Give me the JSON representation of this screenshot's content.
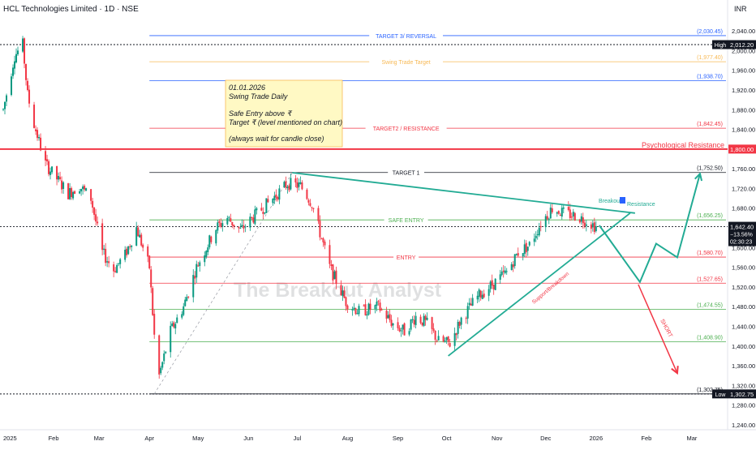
{
  "header": {
    "title": "HCL Technologies Limited · 1D · NSE",
    "currency": "INR"
  },
  "watermark": "The Breakout Analyst",
  "note": {
    "lines": [
      "01.01.2026",
      "Swing Trade Daily",
      "",
      "Safe Entry above ₹",
      "Target ₹ (level mentioned on chart)",
      "",
      "(always wait for candle close)"
    ]
  },
  "colors": {
    "up": "#089981",
    "down": "#f23645",
    "blue_line": "#2962ff",
    "orange_line": "#f7b955",
    "red_line": "#f23645",
    "black_line": "#131722",
    "green_line": "#4caf50",
    "trend": "#22ab94",
    "projection": "#22ab94",
    "short": "#f23645",
    "note_bg": "#fff9c4",
    "axis_text": "#131722"
  },
  "chart_data": {
    "type": "candlestick",
    "symbol": "HCL Technologies Limited",
    "interval": "1D",
    "exchange": "NSE",
    "ylim": [
      1230,
      2060
    ],
    "y_ticks": [
      1240,
      1280,
      1320,
      1360,
      1400,
      1440,
      1480,
      1520,
      1560,
      1600,
      1640,
      1680,
      1720,
      1760,
      1800,
      1840,
      1880,
      1920,
      1960,
      2000,
      2040
    ],
    "y_tick_labels": [
      "1,240.00",
      "1,280.00",
      "1,320.00",
      "1,360.00",
      "1,400.00",
      "1,440.00",
      "1,480.00",
      "1,520.00",
      "1,560.00",
      "1,600.00",
      "1,640.00",
      "1,680.00",
      "1,720.00",
      "1,760.00",
      "1,800.00",
      "1,840.00",
      "1,880.00",
      "1,920.00",
      "1,960.00",
      "2,000.00",
      "2,040.00"
    ],
    "x_range": [
      "2025-01-01",
      "2026-03-21"
    ],
    "x_ticks": [
      {
        "date": "2025-01-01",
        "label": "2025"
      },
      {
        "date": "2025-02-01",
        "label": "Feb"
      },
      {
        "date": "2025-03-01",
        "label": "Mar"
      },
      {
        "date": "2025-04-01",
        "label": "Apr"
      },
      {
        "date": "2025-05-01",
        "label": "May"
      },
      {
        "date": "2025-06-01",
        "label": "Jun"
      },
      {
        "date": "2025-07-01",
        "label": "Jul"
      },
      {
        "date": "2025-08-01",
        "label": "Aug"
      },
      {
        "date": "2025-09-01",
        "label": "Sep"
      },
      {
        "date": "2025-10-01",
        "label": "Oct"
      },
      {
        "date": "2025-11-01",
        "label": "Nov"
      },
      {
        "date": "2025-12-01",
        "label": "Dec"
      },
      {
        "date": "2026-01-01",
        "label": "2026"
      },
      {
        "date": "2026-02-01",
        "label": "Feb"
      },
      {
        "date": "2026-03-01",
        "label": "Mar"
      }
    ],
    "candle_keypoints": [
      [
        "2025-01-01",
        1880
      ],
      [
        "2025-01-08",
        1990
      ],
      [
        "2025-01-13",
        2012
      ],
      [
        "2025-01-16",
        1910
      ],
      [
        "2025-01-20",
        1850
      ],
      [
        "2025-01-27",
        1770
      ],
      [
        "2025-02-03",
        1740
      ],
      [
        "2025-02-10",
        1710
      ],
      [
        "2025-02-17",
        1725
      ],
      [
        "2025-02-24",
        1700
      ],
      [
        "2025-03-03",
        1590
      ],
      [
        "2025-03-10",
        1555
      ],
      [
        "2025-03-17",
        1585
      ],
      [
        "2025-03-24",
        1640
      ],
      [
        "2025-04-01",
        1560
      ],
      [
        "2025-04-04",
        1420
      ],
      [
        "2025-04-07",
        1340
      ],
      [
        "2025-04-14",
        1430
      ],
      [
        "2025-04-22",
        1480
      ],
      [
        "2025-04-30",
        1560
      ],
      [
        "2025-05-12",
        1640
      ],
      [
        "2025-05-19",
        1660
      ],
      [
        "2025-05-27",
        1635
      ],
      [
        "2025-06-05",
        1665
      ],
      [
        "2025-06-16",
        1700
      ],
      [
        "2025-06-25",
        1730
      ],
      [
        "2025-07-03",
        1725
      ],
      [
        "2025-07-10",
        1690
      ],
      [
        "2025-07-15",
        1630
      ],
      [
        "2025-07-21",
        1560
      ],
      [
        "2025-07-31",
        1490
      ],
      [
        "2025-08-08",
        1470
      ],
      [
        "2025-08-20",
        1480
      ],
      [
        "2025-08-29",
        1445
      ],
      [
        "2025-09-05",
        1430
      ],
      [
        "2025-09-12",
        1460
      ],
      [
        "2025-09-19",
        1445
      ],
      [
        "2025-09-26",
        1410
      ],
      [
        "2025-10-03",
        1405
      ],
      [
        "2025-10-10",
        1455
      ],
      [
        "2025-10-20",
        1500
      ],
      [
        "2025-10-31",
        1530
      ],
      [
        "2025-11-07",
        1550
      ],
      [
        "2025-11-14",
        1590
      ],
      [
        "2025-11-21",
        1605
      ],
      [
        "2025-11-28",
        1650
      ],
      [
        "2025-12-05",
        1680
      ],
      [
        "2025-12-12",
        1670
      ],
      [
        "2025-12-19",
        1665
      ],
      [
        "2025-12-26",
        1655
      ],
      [
        "2026-01-01",
        1642
      ]
    ],
    "horizontal_levels": [
      {
        "value": 2030.45,
        "label": "TARGET 3/ REVERSAL",
        "value_label": "(2,030.45)",
        "color": "#2962ff",
        "from": "2025-04-01"
      },
      {
        "value": 1977.4,
        "label": "Swing Trade Target",
        "value_label": "(1,977.40)",
        "color": "#f7b955",
        "from": "2025-04-01"
      },
      {
        "value": 1938.7,
        "label": "",
        "value_label": "(1,938.70)",
        "color": "#2962ff",
        "from": "2025-04-01"
      },
      {
        "value": 1842.45,
        "label": "TARGET2 / RESISTANCE",
        "value_label": "(1,842.45)",
        "color": "#f23645",
        "from": "2025-04-01"
      },
      {
        "value": 1752.5,
        "label": "TARGET 1",
        "value_label": "(1,752.50)",
        "color": "#131722",
        "from": "2025-04-01"
      },
      {
        "value": 1656.25,
        "label": "SAFE ENTRY",
        "value_label": "(1,656.25)",
        "color": "#4caf50",
        "from": "2025-04-01"
      },
      {
        "value": 1580.7,
        "label": "ENTRY",
        "value_label": "(1,580.70)",
        "color": "#f23645",
        "from": "2025-04-01"
      },
      {
        "value": 1527.65,
        "label": "",
        "value_label": "(1,527.65)",
        "color": "#f23645",
        "from": "2025-04-01"
      },
      {
        "value": 1474.55,
        "label": "",
        "value_label": "(1,474.55)",
        "color": "#4caf50",
        "from": "2025-04-01"
      },
      {
        "value": 1408.9,
        "label": "",
        "value_label": "(1,408.90)",
        "color": "#4caf50",
        "from": "2025-04-01"
      },
      {
        "value": 1302.75,
        "label": "",
        "value_label": "(1,302.75)",
        "color": "#131722",
        "from": "2025-04-01"
      }
    ],
    "special_lines": [
      {
        "value": 1800.0,
        "label": "Psychological Resistance",
        "axis_label": "1,800.00",
        "color": "#f23645"
      },
      {
        "value": 2012.2,
        "axis_tag": "High",
        "axis_label": "2,012.20",
        "color": "#131722"
      },
      {
        "value": 1302.75,
        "axis_tag": "Low",
        "axis_label": "1,302.75",
        "color": "#131722"
      }
    ],
    "last_price": {
      "value": 1642.4,
      "label": "1,642.40",
      "change": "−13.56%",
      "countdown": "02:30:23"
    },
    "trend_lines": [
      {
        "name": "Breakout Resistance",
        "from": [
          "2025-06-28",
          1752
        ],
        "to": [
          "2026-01-25",
          1670
        ],
        "color": "#22ab94"
      },
      {
        "name": "Support/Breakdown",
        "from": [
          "2025-10-02",
          1380
        ],
        "to": [
          "2026-01-22",
          1670
        ],
        "color": "#22ab94"
      }
    ],
    "annotations": {
      "breakout_label": "Breakout",
      "resistance_label": "Resistance",
      "support_label": "Support/Breakdown",
      "short_label": "SHORT"
    },
    "projection_path": [
      [
        "2026-01-03",
        1645
      ],
      [
        "2026-01-28",
        1530
      ],
      [
        "2026-02-07",
        1608
      ],
      [
        "2026-02-20",
        1580
      ],
      [
        "2026-03-06",
        1750
      ]
    ],
    "short_arrow": {
      "from": [
        "2026-01-27",
        1525
      ],
      "to": [
        "2026-02-20",
        1345
      ]
    }
  }
}
